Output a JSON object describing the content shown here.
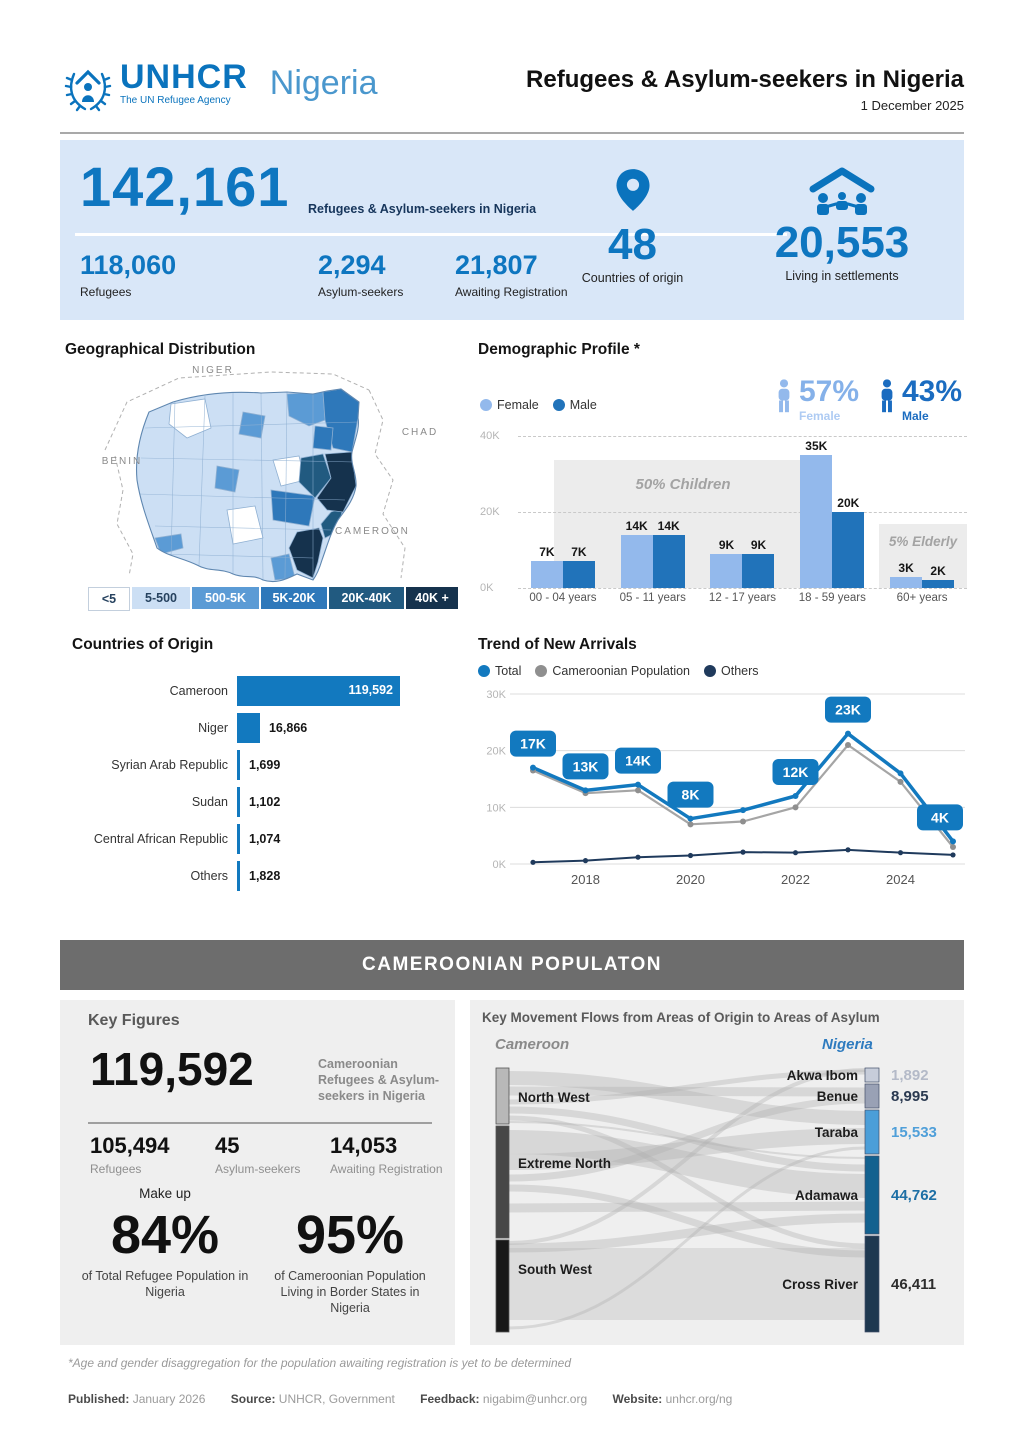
{
  "header": {
    "org": "UNHCR",
    "tagline": "The UN Refugee Agency",
    "country": "Nigeria",
    "title": "Refugees & Asylum-seekers in Nigeria",
    "date": "1 December 2025"
  },
  "hero": {
    "total": "142,161",
    "total_label": "Refugees & Asylum-seekers in Nigeria",
    "stats": [
      {
        "value": "118,060",
        "label": "Refugees"
      },
      {
        "value": "2,294",
        "label": "Asylum-seekers"
      },
      {
        "value": "21,807",
        "label": "Awaiting Registration"
      }
    ],
    "countries": {
      "value": "48",
      "label": "Countries of origin"
    },
    "settlements": {
      "value": "20,553",
      "label": "Living in settlements"
    }
  },
  "geo": {
    "title": "Geographical Distribution",
    "neighbors": {
      "north": "NIGER",
      "east": "CHAD",
      "west": "BENIN",
      "southeast": "CAMEROON"
    },
    "legend": [
      {
        "label": "<5",
        "color": "#ffffff",
        "text": "#26425f"
      },
      {
        "label": "5-500",
        "color": "#ccdff4",
        "text": "#26425f"
      },
      {
        "label": "500-5K",
        "color": "#5b9bd5",
        "text": "#ffffff"
      },
      {
        "label": "5K-20K",
        "color": "#2e78ba",
        "text": "#ffffff"
      },
      {
        "label": "20K-40K",
        "color": "#215a80",
        "text": "#ffffff"
      },
      {
        "label": "40K +",
        "color": "#15324d",
        "text": "#ffffff"
      }
    ]
  },
  "demographics": {
    "title": "Demographic Profile *",
    "female_label": "Female",
    "male_label": "Male",
    "female_pct": "57%",
    "male_pct": "43%",
    "female_color": "#93b9ec",
    "male_color": "#2173ba",
    "categories": [
      "00 - 04 years",
      "05 - 11 years",
      "12 - 17 years",
      "18 - 59 years",
      "60+ years"
    ],
    "female_values": [
      7,
      14,
      9,
      35,
      3
    ],
    "male_values": [
      7,
      14,
      9,
      20,
      2
    ],
    "female_value_labels": [
      "7K",
      "14K",
      "9K",
      "35K",
      "3K"
    ],
    "male_value_labels": [
      "7K",
      "14K",
      "9K",
      "20K",
      "2K"
    ],
    "ymax": 40,
    "yticks": [
      {
        "label": "0K",
        "v": 0
      },
      {
        "label": "20K",
        "v": 20
      },
      {
        "label": "40K",
        "v": 40
      }
    ],
    "annotation_children": "50% Children",
    "annotation_elderly": "5% Elderly"
  },
  "origins": {
    "title": "Countries of Origin",
    "rows": [
      {
        "label": "Cameroon",
        "value": 119592,
        "display": "119,592"
      },
      {
        "label": "Niger",
        "value": 16866,
        "display": "16,866"
      },
      {
        "label": "Syrian Arab Republic",
        "value": 1699,
        "display": "1,699"
      },
      {
        "label": "Sudan",
        "value": 1102,
        "display": "1,102"
      },
      {
        "label": "Central African Republic",
        "value": 1074,
        "display": "1,074"
      },
      {
        "label": "Others",
        "value": 1828,
        "display": "1,828"
      }
    ]
  },
  "trend": {
    "title": "Trend of New Arrivals",
    "legend": [
      {
        "label": "Total",
        "color": "#1279bf"
      },
      {
        "label": "Cameroonian Population",
        "color": "#8f8f8f"
      },
      {
        "label": "Others",
        "color": "#1f3a5c"
      }
    ],
    "years": [
      2017,
      2018,
      2019,
      2020,
      2021,
      2022,
      2023,
      2024,
      2025
    ],
    "xticks": [
      "2018",
      "2020",
      "2022",
      "2024"
    ],
    "total": [
      17,
      13,
      14,
      8,
      9.5,
      12,
      23,
      16,
      4
    ],
    "cameroonian": [
      16.5,
      12.5,
      13,
      7,
      7.5,
      10,
      21,
      14.5,
      3
    ],
    "others": [
      0.3,
      0.6,
      1.2,
      1.5,
      2.1,
      2,
      2.5,
      2,
      1.6
    ],
    "point_labels": [
      "17K",
      "13K",
      "14K",
      "8K",
      null,
      "12K",
      "23K",
      null,
      "4K"
    ],
    "ymax": 30,
    "yticks": [
      {
        "label": "0K",
        "v": 0
      },
      {
        "label": "10K",
        "v": 10
      },
      {
        "label": "20K",
        "v": 20
      },
      {
        "label": "30K",
        "v": 30
      }
    ]
  },
  "band_title": "CAMEROONIAN POPULATON",
  "key_figures": {
    "title": "Key Figures",
    "total": "119,592",
    "total_label": "Cameroonian Refugees & Asylum-seekers in Nigeria",
    "stats": [
      {
        "value": "105,494",
        "label": "Refugees"
      },
      {
        "value": "45",
        "label": "Asylum-seekers"
      },
      {
        "value": "14,053",
        "label": "Awaiting Registration"
      }
    ],
    "makeup_label": "Make up",
    "pct1": "84%",
    "pct1_label": "of Total Refugee Population in Nigeria",
    "pct2": "95%",
    "pct2_label": "of Cameroonian Population Living in Border States in Nigeria"
  },
  "sankey": {
    "title": "Key Movement Flows from Areas of Origin to Areas of Asylum",
    "left_header": "Cameroon",
    "right_header": "Nigeria",
    "origins": [
      {
        "name": "North West",
        "color": "#b8b8b8"
      },
      {
        "name": "Extreme North",
        "color": "#474747"
      },
      {
        "name": "South West",
        "color": "#181818"
      }
    ],
    "destinations": [
      {
        "name": "Akwa Ibom",
        "display": "1,892",
        "node_color": "#c7cdda",
        "value_color": "#b4bac8"
      },
      {
        "name": "Benue",
        "display": "8,995",
        "node_color": "#99a1b5",
        "value_color": "#2a3950"
      },
      {
        "name": "Taraba",
        "display": "15,533",
        "node_color": "#4b9ed8",
        "value_color": "#4f9fd9"
      },
      {
        "name": "Adamawa",
        "display": "44,762",
        "node_color": "#13618f",
        "value_color": "#1d6fa5"
      },
      {
        "name": "Cross River",
        "display": "46,411",
        "node_color": "#1e3850",
        "value_color": "#2d2d2d"
      }
    ]
  },
  "footer": {
    "note": "*Age and gender disaggregation for the population awaiting registration is yet to be determined",
    "published_label": "Published:",
    "published": "January 2026",
    "source_label": "Source:",
    "source": "UNHCR, Government",
    "feedback_label": "Feedback:",
    "feedback": "nigabim@unhcr.org",
    "website_label": "Website:",
    "website": "unhcr.org/ng"
  },
  "chart_data": [
    {
      "type": "bar",
      "title": "Demographic Profile *",
      "categories": [
        "00 - 04 years",
        "05 - 11 years",
        "12 - 17 years",
        "18 - 59 years",
        "60+ years"
      ],
      "series": [
        {
          "name": "Female",
          "values": [
            7000,
            14000,
            9000,
            35000,
            3000
          ]
        },
        {
          "name": "Male",
          "values": [
            7000,
            14000,
            9000,
            20000,
            2000
          ]
        }
      ],
      "annotations": [
        "50% Children",
        "5% Elderly",
        "57% Female",
        "43% Male"
      ],
      "ylim": [
        0,
        40000
      ],
      "legend_position": "top-left",
      "grid": "dashed-horizontal"
    },
    {
      "type": "bar",
      "orientation": "horizontal",
      "title": "Countries of Origin",
      "categories": [
        "Cameroon",
        "Niger",
        "Syrian Arab Republic",
        "Sudan",
        "Central African Republic",
        "Others"
      ],
      "values": [
        119592,
        16866,
        1699,
        1102,
        1074,
        1828
      ]
    },
    {
      "type": "line",
      "title": "Trend of New Arrivals",
      "x": [
        2017,
        2018,
        2019,
        2020,
        2021,
        2022,
        2023,
        2024,
        2025
      ],
      "series": [
        {
          "name": "Total",
          "values": [
            17000,
            13000,
            14000,
            8000,
            9500,
            12000,
            23000,
            16000,
            4000
          ]
        },
        {
          "name": "Cameroonian Population",
          "values": [
            16500,
            12500,
            13000,
            7000,
            7500,
            10000,
            21000,
            14500,
            3000
          ]
        },
        {
          "name": "Others",
          "values": [
            300,
            600,
            1200,
            1500,
            2100,
            2000,
            2500,
            2000,
            1600
          ]
        }
      ],
      "point_labels": [
        "17K",
        "13K",
        "14K",
        "8K",
        null,
        "12K",
        "23K",
        null,
        "4K"
      ],
      "ylim": [
        0,
        30000
      ],
      "xticks": [
        2018,
        2020,
        2022,
        2024
      ],
      "legend_position": "top-left"
    },
    {
      "type": "sankey",
      "title": "Key Movement Flows from Areas of Origin to Areas of Asylum",
      "left_label": "Cameroon",
      "right_label": "Nigeria",
      "sources": [
        "North West",
        "Extreme North",
        "South West"
      ],
      "targets": [
        {
          "name": "Akwa Ibom",
          "value": 1892
        },
        {
          "name": "Benue",
          "value": 8995
        },
        {
          "name": "Taraba",
          "value": 15533
        },
        {
          "name": "Adamawa",
          "value": 44762
        },
        {
          "name": "Cross River",
          "value": 46411
        }
      ]
    },
    {
      "type": "heatmap",
      "subtype": "choropleth-map",
      "title": "Geographical Distribution",
      "bins": [
        "<5",
        "5-500",
        "500-5K",
        "5K-20K",
        "20K-40K",
        "40K +"
      ]
    }
  ]
}
